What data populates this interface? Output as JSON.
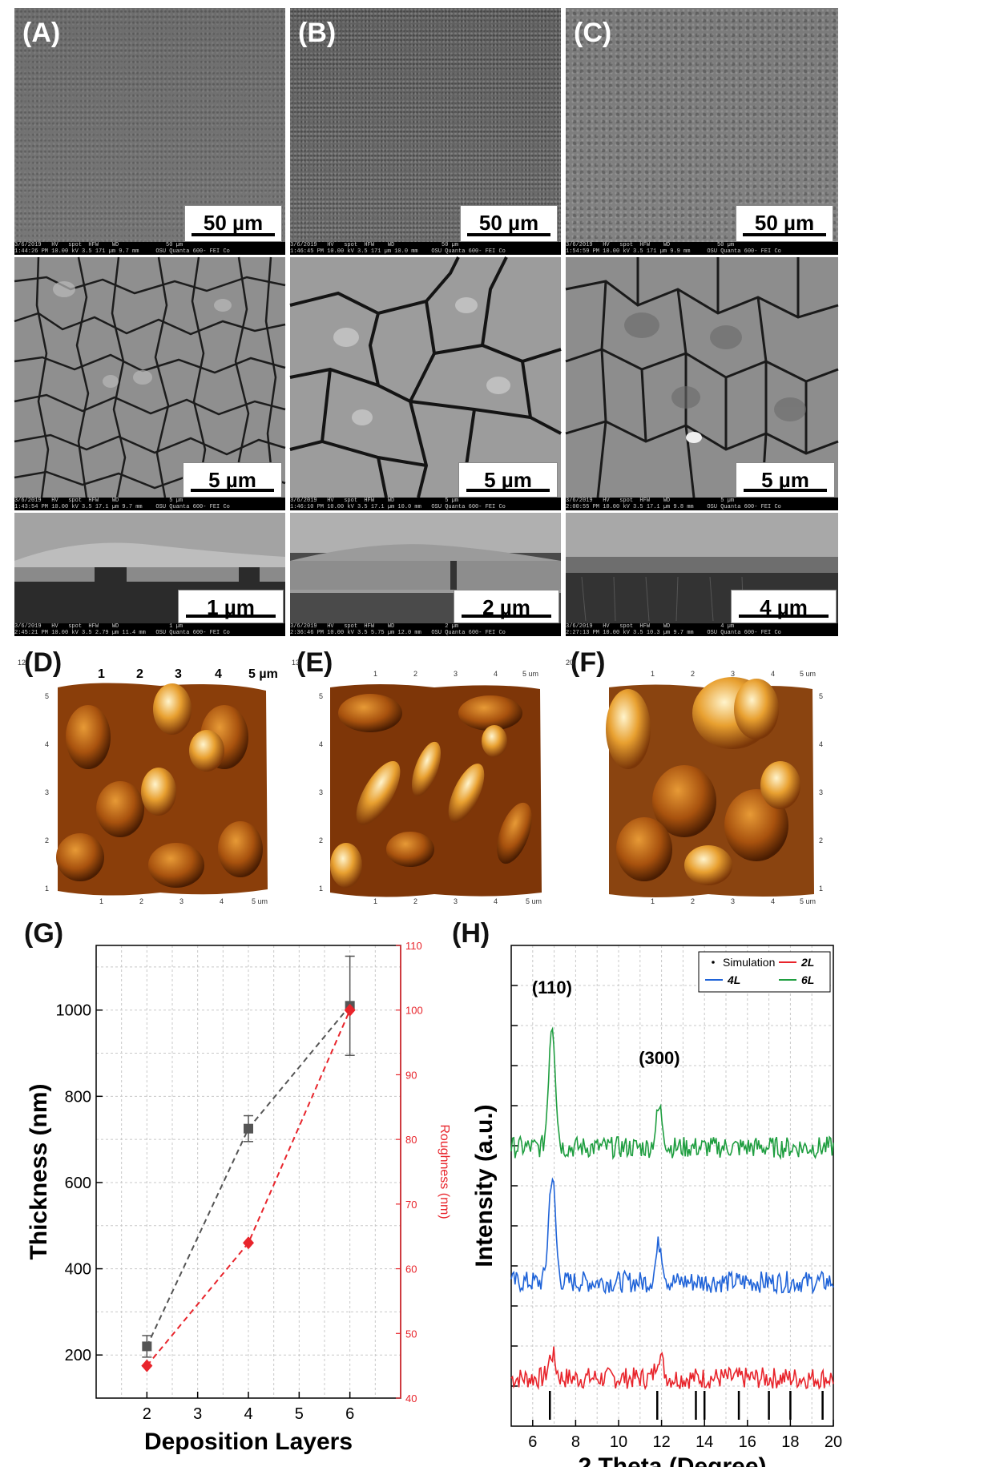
{
  "panel_labels": {
    "A": "(A)",
    "B": "(B)",
    "C": "(C)",
    "D": "(D)",
    "E": "(E)",
    "F": "(F)",
    "G": "(G)",
    "H": "(H)"
  },
  "sem": {
    "scalebars": {
      "a_low": "50 µm",
      "b_low": "50 µm",
      "c_low": "50 µm",
      "a_mid": "5 µm",
      "b_mid": "5 µm",
      "c_mid": "5 µm",
      "a_cross": "1 µm",
      "b_cross": "2 µm",
      "c_cross": "4 µm"
    },
    "databars": {
      "a_low": "3/6/2019   HV   spot  HFW    WD              50 µm\n1:44:26 PM 10.00 kV 3.5 171 µm 9.7 mm     OSU Quanta 600- FEI Co",
      "b_low": "3/6/2019   HV   spot  HFW    WD              50 µm\n1:46:45 PM 10.00 kV 3.5 171 µm 10.0 mm    OSU Quanta 600- FEI Co",
      "c_low": "3/6/2019   HV   spot  HFW    WD              50 µm\n1:54:59 PM 10.00 kV 3.5 171 µm 9.9 mm     OSU Quanta 600- FEI Co",
      "a_mid": "3/6/2019   HV   spot  HFW    WD               5 µm\n1:43:54 PM 10.00 kV 3.5 17.1 µm 9.7 mm    OSU Quanta 600- FEI Co",
      "b_mid": "3/6/2019   HV   spot  HFW    WD               5 µm\n1:46:10 PM 10.00 kV 3.5 17.1 µm 10.0 mm   OSU Quanta 600- FEI Co",
      "c_mid": "3/6/2019   HV   spot  HFW    WD               5 µm\n2:00:55 PM 10.00 kV 3.5 17.1 µm 9.8 mm    OSU Quanta 600- FEI Co",
      "a_cross": "3/6/2019   HV   spot  HFW    WD               1 µm\n2:45:21 PM 10.00 kV 3.5 2.79 µm 11.4 mm   OSU Quanta 600- FEI Co",
      "b_cross": "3/6/2019   HV   spot  HFW    WD               2 µm\n2:36:46 PM 10.00 kV 3.5 5.75 µm 12.0 mm   OSU Quanta 600- FEI Co",
      "c_cross": "3/6/2019   HV   spot  HFW    WD               4 µm\n2:27:13 PM 10.00 kV 3.5 10.3 µm 9.7 mm    OSU Quanta 600- FEI Co"
    }
  },
  "afm": {
    "top_axis_ticks": [
      "1",
      "2",
      "3",
      "4",
      "5 µm"
    ],
    "small_ticks": [
      "1",
      "2",
      "3",
      "4",
      "5 um"
    ],
    "side_ticks": [
      "1",
      "2",
      "3",
      "4",
      "5"
    ],
    "corner_labels": [
      "12",
      "13",
      "20"
    ]
  },
  "chart_data": [
    {
      "type": "line",
      "panel": "(G)",
      "xlabel": "Deposition Layers",
      "ylabel": "Thickness (nm)",
      "y2label": "Roughness (nm)",
      "x": [
        2,
        4,
        6
      ],
      "xlim": [
        1,
        7
      ],
      "ylim": [
        100,
        1150
      ],
      "y2lim": [
        40,
        110
      ],
      "xticks": [
        2,
        3,
        4,
        5,
        6
      ],
      "yticks": [
        200,
        400,
        600,
        800,
        1000
      ],
      "y2ticks": [
        40,
        50,
        60,
        70,
        80,
        90,
        100,
        110
      ],
      "series": [
        {
          "values": [
            220,
            725,
            1010
          ],
          "errors": [
            25,
            30,
            115
          ],
          "color": "#555555",
          "axis": "left",
          "marker": "square"
        },
        {
          "values": [
            45,
            64,
            100
          ],
          "color": "#e8242b",
          "axis": "right",
          "marker": "diamond"
        }
      ],
      "grid": true
    },
    {
      "type": "line",
      "panel": "(H)",
      "xlabel": "2 Theta (Degree)",
      "ylabel": "Intensity (a.u.)",
      "xlim": [
        5,
        20
      ],
      "xticks": [
        6,
        8,
        10,
        12,
        14,
        16,
        18,
        20
      ],
      "legend": [
        "Simulation",
        "2L",
        "4L",
        "6L"
      ],
      "legend_position": "top-right",
      "annotations": [
        "(110)",
        "(300)"
      ],
      "annotation_x": [
        6.9,
        11.9
      ],
      "simulation_peaks": [
        6.8,
        11.8,
        13.6,
        14.0,
        15.6,
        17.0,
        18.0,
        19.5
      ],
      "series": [
        {
          "name": "2L",
          "color": "#e8242b",
          "baseline": 0.1,
          "peaks": [
            [
              6.9,
              0.05
            ],
            [
              11.9,
              0.05
            ]
          ]
        },
        {
          "name": "4L",
          "color": "#1f63d8",
          "baseline": 0.3,
          "peaks": [
            [
              6.9,
              0.22
            ],
            [
              11.9,
              0.08
            ]
          ]
        },
        {
          "name": "6L",
          "color": "#1f9e40",
          "baseline": 0.58,
          "peaks": [
            [
              6.9,
              0.26
            ],
            [
              11.9,
              0.08
            ]
          ]
        }
      ],
      "grid": true
    }
  ]
}
